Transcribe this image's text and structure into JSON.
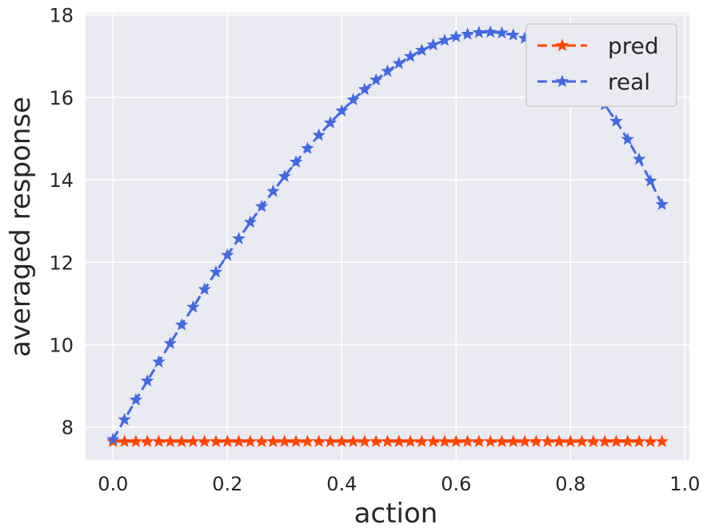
{
  "chart_data": {
    "type": "line",
    "title": "",
    "xlabel": "action",
    "ylabel": "averaged response",
    "xlim": [
      -0.048,
      1.008
    ],
    "ylim": [
      7.2,
      18.05
    ],
    "xticks": [
      "0.0",
      "0.2",
      "0.4",
      "0.6",
      "0.8",
      "1.0"
    ],
    "yticks": [
      "8",
      "10",
      "12",
      "14",
      "16",
      "18"
    ],
    "grid": true,
    "background": "#EAEAF2",
    "legend": "top-right",
    "x": [
      0.0,
      0.02,
      0.04,
      0.06,
      0.08,
      0.1,
      0.12,
      0.14,
      0.16,
      0.18,
      0.2,
      0.22,
      0.24,
      0.26,
      0.28,
      0.3,
      0.32,
      0.34,
      0.36,
      0.38,
      0.4,
      0.42,
      0.44,
      0.46,
      0.48,
      0.5,
      0.52,
      0.54,
      0.56,
      0.58,
      0.6,
      0.62,
      0.64,
      0.66,
      0.68,
      0.7,
      0.72,
      0.74,
      0.76,
      0.78,
      0.8,
      0.82,
      0.84,
      0.86,
      0.88,
      0.9,
      0.92,
      0.94,
      0.96
    ],
    "series": [
      {
        "name": "pred",
        "color": "#FF4500",
        "values": [
          7.65,
          7.65,
          7.65,
          7.65,
          7.65,
          7.65,
          7.65,
          7.65,
          7.65,
          7.65,
          7.65,
          7.65,
          7.65,
          7.65,
          7.65,
          7.65,
          7.65,
          7.65,
          7.65,
          7.65,
          7.65,
          7.65,
          7.65,
          7.65,
          7.65,
          7.65,
          7.65,
          7.65,
          7.65,
          7.65,
          7.65,
          7.65,
          7.65,
          7.65,
          7.65,
          7.65,
          7.65,
          7.65,
          7.65,
          7.65,
          7.65,
          7.65,
          7.65,
          7.65,
          7.65,
          7.65,
          7.65,
          7.65,
          7.65
        ]
      },
      {
        "name": "real",
        "color": "#4169E1",
        "values": [
          7.7,
          8.18,
          8.66,
          9.12,
          9.58,
          10.03,
          10.48,
          10.91,
          11.34,
          11.76,
          12.17,
          12.57,
          12.97,
          13.35,
          13.72,
          14.08,
          14.43,
          14.76,
          15.08,
          15.38,
          15.67,
          15.94,
          16.19,
          16.42,
          16.63,
          16.82,
          16.99,
          17.14,
          17.27,
          17.38,
          17.47,
          17.53,
          17.57,
          17.58,
          17.56,
          17.51,
          17.43,
          17.32,
          17.17,
          16.98,
          16.75,
          16.48,
          16.17,
          15.82,
          15.42,
          14.98,
          14.5,
          13.97,
          13.4
        ]
      }
    ]
  }
}
